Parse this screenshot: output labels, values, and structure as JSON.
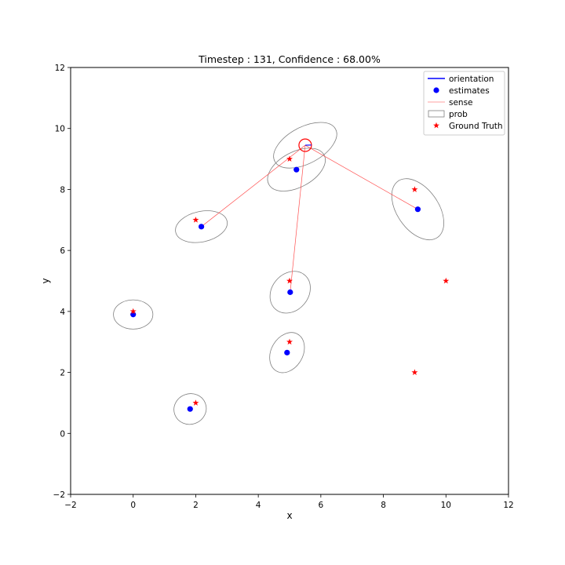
{
  "chart_data": {
    "type": "scatter",
    "title": "Timestep : 131, Confidence : 68.00%",
    "xlabel": "x",
    "ylabel": "y",
    "xlim": [
      -2,
      12
    ],
    "ylim": [
      -2,
      12
    ],
    "xticks": [
      -2,
      0,
      2,
      4,
      6,
      8,
      10,
      12
    ],
    "yticks": [
      -2,
      0,
      2,
      4,
      6,
      8,
      10,
      12
    ],
    "grid": false,
    "legend_position": "top-right",
    "legend": [
      {
        "label": "orientation",
        "kind": "line",
        "color": "#0000ff"
      },
      {
        "label": "estimates",
        "kind": "dot",
        "color": "#0000ff"
      },
      {
        "label": "sense",
        "kind": "line",
        "color": "#ff8080"
      },
      {
        "label": "prob",
        "kind": "rect",
        "color": "#808080"
      },
      {
        "label": "Ground Truth",
        "kind": "star",
        "color": "#ff0000"
      }
    ],
    "robot": {
      "x": 5.5,
      "y": 9.45,
      "radius": 0.2,
      "orientation_deg": 2
    },
    "estimates": [
      {
        "x": 5.22,
        "y": 8.65
      },
      {
        "x": 2.18,
        "y": 6.78
      },
      {
        "x": 9.1,
        "y": 7.35
      },
      {
        "x": 5.02,
        "y": 4.63
      },
      {
        "x": 0.0,
        "y": 3.9
      },
      {
        "x": 4.92,
        "y": 2.65
      },
      {
        "x": 1.82,
        "y": 0.8
      }
    ],
    "ellipses": [
      {
        "cx": 5.5,
        "cy": 9.45,
        "rx": 1.1,
        "ry": 0.6,
        "angle": -28
      },
      {
        "cx": 5.22,
        "cy": 8.65,
        "rx": 1.0,
        "ry": 0.58,
        "angle": -28
      },
      {
        "cx": 2.18,
        "cy": 6.78,
        "rx": 0.84,
        "ry": 0.5,
        "angle": -12
      },
      {
        "cx": 9.1,
        "cy": 7.35,
        "rx": 1.1,
        "ry": 0.68,
        "angle": 55
      },
      {
        "cx": 5.02,
        "cy": 4.63,
        "rx": 0.72,
        "ry": 0.6,
        "angle": -50
      },
      {
        "cx": 0.0,
        "cy": 3.9,
        "rx": 0.63,
        "ry": 0.48,
        "angle": 0
      },
      {
        "cx": 4.92,
        "cy": 2.65,
        "rx": 0.68,
        "ry": 0.52,
        "angle": -60
      },
      {
        "cx": 1.82,
        "cy": 0.8,
        "rx": 0.52,
        "ry": 0.5,
        "angle": -20
      }
    ],
    "sense_lines": [
      {
        "x1": 5.5,
        "y1": 9.45,
        "x2": 2.18,
        "y2": 6.78
      },
      {
        "x1": 5.5,
        "y1": 9.45,
        "x2": 9.1,
        "y2": 7.35
      },
      {
        "x1": 5.5,
        "y1": 9.45,
        "x2": 5.02,
        "y2": 4.63
      }
    ],
    "ground_truth": [
      {
        "x": 5,
        "y": 9
      },
      {
        "x": 2,
        "y": 7
      },
      {
        "x": 9,
        "y": 8
      },
      {
        "x": 5,
        "y": 5
      },
      {
        "x": 10,
        "y": 5
      },
      {
        "x": 0,
        "y": 4
      },
      {
        "x": 5,
        "y": 3
      },
      {
        "x": 9,
        "y": 2
      },
      {
        "x": 2,
        "y": 1
      }
    ]
  }
}
